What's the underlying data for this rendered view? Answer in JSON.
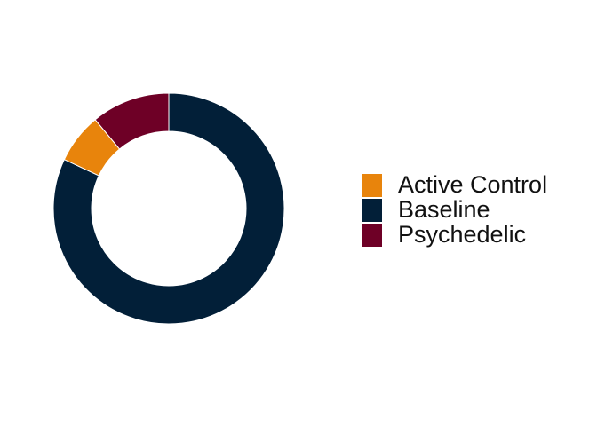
{
  "chart_data": {
    "type": "pie",
    "style": "donut",
    "categories": [
      "Active Control",
      "Baseline",
      "Psychedelic"
    ],
    "values": [
      7,
      82,
      11
    ],
    "colors": [
      "#E8840C",
      "#021F38",
      "#6E0026"
    ],
    "slice_order": [
      "Baseline",
      "Active Control",
      "Psychedelic"
    ],
    "direction": "clockwise from top",
    "legend": {
      "placement": "right",
      "entries": [
        "Active Control",
        "Baseline",
        "Psychedelic"
      ]
    }
  }
}
